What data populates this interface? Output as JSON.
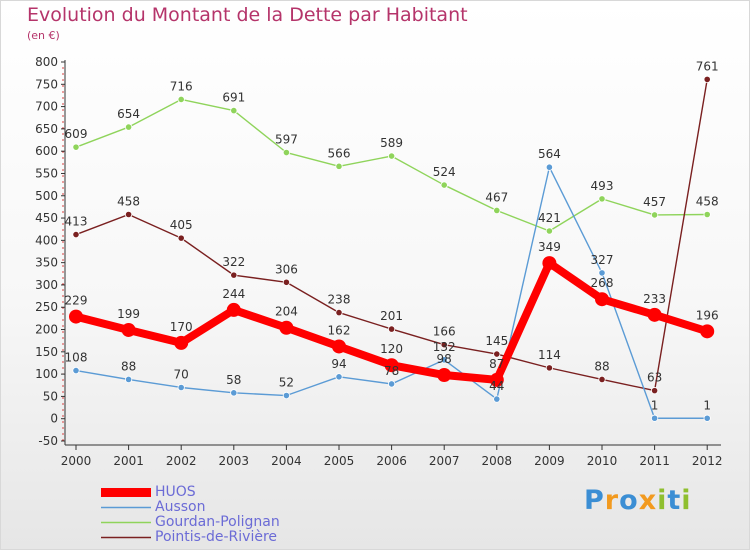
{
  "title": "Evolution du Montant de la Dette par Habitant",
  "subtitle": "(en €)",
  "logo": {
    "letters": [
      "P",
      "r",
      "o",
      "x",
      "i",
      "t",
      "i"
    ],
    "colors": [
      "#3b8ed4",
      "#f29a1f",
      "#3b8ed4",
      "#f29a1f",
      "#8fbf2f",
      "#3b8ed4",
      "#8fbf2f"
    ]
  },
  "chart_data": {
    "type": "line",
    "x": [
      "2000",
      "2001",
      "2002",
      "2003",
      "2004",
      "2005",
      "2006",
      "2007",
      "2008",
      "2009",
      "2010",
      "2011",
      "2012"
    ],
    "ylim": [
      -50,
      800
    ],
    "yticks": [
      -50,
      0,
      50,
      100,
      150,
      200,
      250,
      300,
      350,
      400,
      450,
      500,
      550,
      600,
      650,
      700,
      750,
      800
    ],
    "grid": false,
    "legend_position": "bottom-left",
    "series": [
      {
        "name": "HUOS",
        "color": "#ff0000",
        "values": [
          229,
          199,
          170,
          244,
          204,
          162,
          120,
          98,
          87,
          349,
          268,
          233,
          196
        ]
      },
      {
        "name": "Ausson",
        "color": "#5b9bd5",
        "values": [
          108,
          88,
          70,
          58,
          52,
          94,
          78,
          132,
          44,
          564,
          327,
          1,
          1
        ]
      },
      {
        "name": "Gourdan-Polignan",
        "color": "#8fd45b",
        "values": [
          609,
          654,
          716,
          691,
          597,
          566,
          589,
          524,
          467,
          421,
          493,
          457,
          458
        ]
      },
      {
        "name": "Pointis-de-Rivière",
        "color": "#7a2020",
        "values": [
          413,
          458,
          405,
          322,
          306,
          238,
          201,
          166,
          145,
          114,
          88,
          63,
          761
        ]
      }
    ]
  }
}
